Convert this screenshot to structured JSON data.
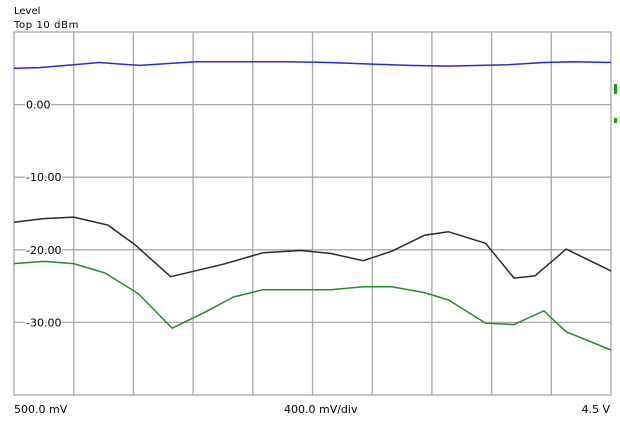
{
  "header": {
    "level_label": "Level",
    "top_label": "Top 10 dBm"
  },
  "footer": {
    "left": "500.0 mV",
    "mid": "400.0 mV/div",
    "right": "4.5 V"
  },
  "chart_data": {
    "type": "line",
    "title": "",
    "xlabel": "",
    "ylabel": "Level",
    "ylim": [
      -40,
      10
    ],
    "xlim": [
      0.5,
      4.5
    ],
    "x_unit": "V",
    "y_ticks": [
      0,
      -10,
      -20,
      -30
    ],
    "y_tick_labels": [
      "0.00",
      "-10.00",
      "-20.00",
      "-30.00"
    ],
    "grid": true,
    "x_divisions": 10,
    "y_divisions": 5,
    "series": [
      {
        "color": "#2b2bcc",
        "x": [
          0.5,
          0.67,
          0.9,
          1.07,
          1.34,
          1.72,
          2.03,
          2.33,
          2.61,
          3.14,
          3.41,
          3.81,
          4.05,
          4.25,
          4.5
        ],
        "y": [
          5.0,
          5.1,
          5.5,
          5.8,
          5.4,
          5.9,
          5.9,
          5.9,
          5.8,
          5.4,
          5.3,
          5.5,
          5.8,
          5.9,
          5.8
        ]
      },
      {
        "color": "#2a2a2a",
        "x": [
          0.5,
          0.7,
          0.9,
          1.13,
          1.31,
          1.55,
          1.9,
          2.17,
          2.42,
          2.62,
          2.84,
          3.03,
          3.25,
          3.41,
          3.66,
          3.85,
          3.99,
          4.2,
          4.5
        ],
        "y": [
          -16.2,
          -15.7,
          -15.5,
          -16.6,
          -19.3,
          -23.7,
          -22.0,
          -20.4,
          -20.1,
          -20.5,
          -21.5,
          -20.2,
          -18.0,
          -17.5,
          -19.1,
          -23.9,
          -23.6,
          -19.9,
          -22.9
        ]
      },
      {
        "color": "#2a8a2a",
        "x": [
          0.5,
          0.7,
          0.9,
          1.11,
          1.33,
          1.56,
          1.78,
          1.97,
          2.17,
          2.42,
          2.62,
          2.84,
          3.03,
          3.25,
          3.41,
          3.66,
          3.85,
          4.05,
          4.2,
          4.5
        ],
        "y": [
          -21.9,
          -21.6,
          -21.9,
          -23.2,
          -26.0,
          -30.8,
          -28.6,
          -26.5,
          -25.5,
          -25.5,
          -25.5,
          -25.1,
          -25.1,
          -25.9,
          -26.9,
          -30.1,
          -30.3,
          -28.4,
          -31.3,
          -33.8
        ]
      }
    ]
  }
}
